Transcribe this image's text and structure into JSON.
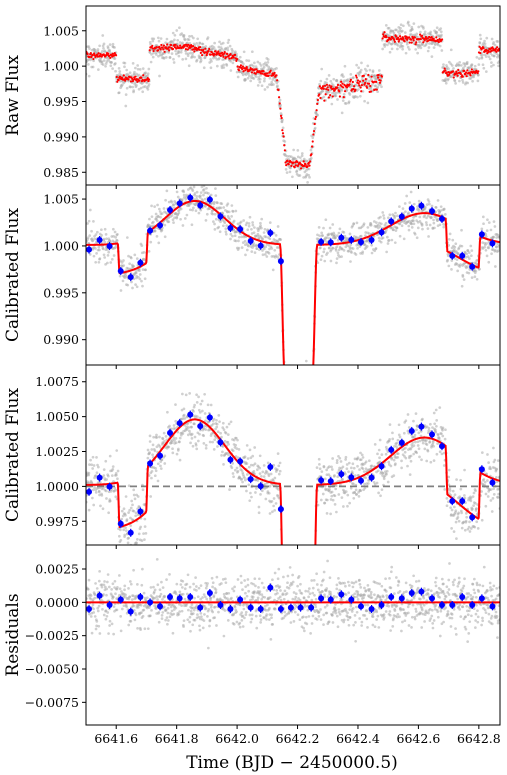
{
  "chart_data": [
    {
      "type": "scatter",
      "ylabel": "Raw Flux",
      "xlim": [
        6641.5,
        6642.87
      ],
      "ylim": [
        0.9832,
        1.0085
      ],
      "yticks": [
        0.985,
        0.99,
        0.995,
        1.0,
        1.005
      ],
      "ytick_labels": [
        "0.985",
        "0.990",
        "0.995",
        "1.000",
        "1.005"
      ],
      "grid": false,
      "series": [
        {
          "role": "raw points",
          "color": "#a9a9a9",
          "segments": [
            {
              "x0": 6641.5,
              "x1": 6641.6,
              "y0": 1.0015,
              "y1": 1.0015
            },
            {
              "x0": 6641.6,
              "x1": 6641.71,
              "y0": 0.9982,
              "y1": 0.9982
            },
            {
              "x0": 6641.71,
              "x1": 6641.82,
              "y0": 1.0025,
              "y1": 1.0028
            },
            {
              "x0": 6641.82,
              "x1": 6642.0,
              "y0": 1.0028,
              "y1": 1.0012
            },
            {
              "x0": 6642.0,
              "x1": 6642.13,
              "y0": 0.9998,
              "y1": 0.9988
            },
            {
              "x0": 6642.13,
              "x1": 6642.16,
              "y0": 0.999,
              "y1": 0.9875
            },
            {
              "x0": 6642.16,
              "x1": 6642.24,
              "y0": 0.9866,
              "y1": 0.9858
            },
            {
              "x0": 6642.24,
              "x1": 6642.27,
              "y0": 0.986,
              "y1": 0.996
            },
            {
              "x0": 6642.27,
              "x1": 6642.48,
              "y0": 0.9965,
              "y1": 0.998
            },
            {
              "x0": 6642.48,
              "x1": 6642.68,
              "y0": 1.004,
              "y1": 1.0038
            },
            {
              "x0": 6642.68,
              "x1": 6642.8,
              "y0": 0.999,
              "y1": 0.9992
            },
            {
              "x0": 6642.8,
              "x1": 6642.87,
              "y0": 1.0022,
              "y1": 1.0022
            }
          ]
        },
        {
          "role": "binned raw",
          "color": "#ff0000"
        }
      ]
    },
    {
      "type": "scatter",
      "ylabel": "Calibrated Flux",
      "xlim": [
        6641.5,
        6642.87
      ],
      "ylim": [
        0.9873,
        1.0065
      ],
      "yticks": [
        0.99,
        0.995,
        1.0,
        1.005
      ],
      "ytick_labels": [
        "0.990",
        "0.995",
        "1.000",
        "1.005"
      ],
      "grid": false,
      "series": [
        {
          "role": "points",
          "color": "#a9a9a9"
        },
        {
          "role": "binned",
          "color": "#0000ff"
        },
        {
          "role": "model",
          "color": "#ff0000"
        }
      ]
    },
    {
      "type": "scatter",
      "ylabel": "Calibrated Flux",
      "xlim": [
        6641.5,
        6642.87
      ],
      "ylim": [
        0.9958,
        1.0087
      ],
      "yticks": [
        0.9975,
        1.0,
        1.0025,
        1.005,
        1.0075
      ],
      "ytick_labels": [
        "0.9975",
        "1.0000",
        "1.0025",
        "1.0050",
        "1.0075"
      ],
      "reference_line": 1.0,
      "grid": false,
      "series": [
        {
          "role": "points",
          "color": "#a9a9a9"
        },
        {
          "role": "binned",
          "color": "#0000ff"
        },
        {
          "role": "model",
          "color": "#ff0000"
        }
      ]
    },
    {
      "type": "scatter",
      "ylabel": "Residuals",
      "xlabel": "Time (BJD − 2450000.5)",
      "xlim": [
        6641.5,
        6642.87
      ],
      "ylim": [
        -0.0092,
        0.0043
      ],
      "xticks": [
        6641.6,
        6641.8,
        6642.0,
        6642.2,
        6642.4,
        6642.6,
        6642.8
      ],
      "xtick_labels": [
        "6641.6",
        "6641.8",
        "6642.0",
        "6642.2",
        "6642.4",
        "6642.6",
        "6642.8"
      ],
      "yticks": [
        0.0025,
        0.0,
        -0.0025,
        -0.005,
        -0.0075
      ],
      "ytick_labels": [
        "0.0025",
        "0.0000",
        "−0.0025",
        "−0.0050",
        "−0.0075"
      ],
      "zero_line": 0.0,
      "grid": false,
      "series": [
        {
          "role": "points",
          "color": "#a9a9a9"
        },
        {
          "role": "binned",
          "color": "#0000ff"
        },
        {
          "role": "model",
          "color": "#ff0000"
        }
      ]
    }
  ],
  "model": {
    "baseline": 1.0,
    "trend_peaks": [
      {
        "x": 6641.86,
        "amp": 0.0047,
        "width": 0.14
      },
      {
        "x": 6642.62,
        "amp": 0.0034,
        "width": 0.16
      }
    ],
    "trend_offset": 0.0001,
    "eclipses": [
      {
        "x0": 6641.605,
        "x1": 6641.705,
        "depth": 0.0032,
        "ingress": 0.006
      },
      {
        "x0": 6642.142,
        "x1": 6642.265,
        "depth": 0.0142,
        "ingress": 0.016
      },
      {
        "x0": 6642.69,
        "x1": 6642.805,
        "depth": 0.0034,
        "ingress": 0.006
      }
    ]
  },
  "binned_points": {
    "x": [
      6641.51,
      6641.545,
      6641.578,
      6641.615,
      6641.648,
      6641.68,
      6641.712,
      6641.745,
      6641.778,
      6641.81,
      6641.845,
      6641.878,
      6641.91,
      6641.945,
      6641.978,
      6642.01,
      6642.045,
      6642.078,
      6642.11,
      6642.145,
      6642.178,
      6642.21,
      6642.245,
      6642.278,
      6642.31,
      6642.345,
      6642.378,
      6642.41,
      6642.445,
      6642.478,
      6642.51,
      6642.545,
      6642.578,
      6642.61,
      6642.645,
      6642.678,
      6642.712,
      6642.745,
      6642.778,
      6642.81,
      6642.845
    ],
    "resid": [
      -0.0005,
      0.0005,
      -0.0002,
      0.0002,
      -0.0007,
      0.0004,
      0.0,
      -0.0003,
      0.0004,
      0.0003,
      0.0004,
      -0.0004,
      0.0007,
      -0.0002,
      -0.0005,
      0.0002,
      -0.0004,
      -0.0005,
      0.0011,
      -0.0005,
      -0.0004,
      -0.0004,
      -0.0004,
      0.0003,
      0.0002,
      0.0006,
      0.0002,
      -0.0003,
      -0.0005,
      -0.0002,
      0.0004,
      0.0003,
      0.0007,
      0.0008,
      0.0003,
      -0.0002,
      -0.0002,
      0.0004,
      -0.0002,
      0.0003,
      -0.0003
    ]
  }
}
